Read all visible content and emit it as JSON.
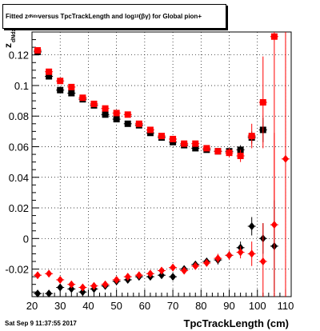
{
  "title": {
    "pre": "Fitted  z",
    "sub": "dNdx",
    "mid": " versus TpcTrackLength and log",
    "sub2": "10",
    "post": "(βγ) for Global pion+"
  },
  "footer": "Sat Sep  9 11:37:55 2017",
  "xlabel": "TpcTrackLength (cm)",
  "ylabel_main": "z",
  "ylabel_sub": "dNdx",
  "chart_data": {
    "type": "scatter",
    "title": "Fitted z_dNdx versus TpcTrackLength and log10(βγ) for Global pion+",
    "xlabel": "TpcTrackLength (cm)",
    "ylabel": "z_dNdx",
    "xlim": [
      20,
      112
    ],
    "ylim": [
      -0.038,
      0.135
    ],
    "xticks": [
      20,
      30,
      40,
      50,
      60,
      70,
      80,
      90,
      100,
      110
    ],
    "xtick_labels": [
      "20",
      "30",
      "40",
      "50",
      "60",
      "70",
      "80",
      "90",
      "100",
      "110"
    ],
    "yticks": [
      -0.02,
      0,
      0.02,
      0.04,
      0.06,
      0.08,
      0.1,
      0.12
    ],
    "ytick_labels": [
      "-0.02",
      "0",
      "0.02",
      "0.04",
      "0.06",
      "0.08",
      "0.1",
      "0.12"
    ],
    "grid": true,
    "series": [
      {
        "marker": "square",
        "color": "#000000",
        "points": [
          {
            "x": 22,
            "y": 0.122,
            "ey": 0.001
          },
          {
            "x": 26,
            "y": 0.106,
            "ey": 0.001
          },
          {
            "x": 30,
            "y": 0.097,
            "ey": 0.001
          },
          {
            "x": 34,
            "y": 0.095,
            "ey": 0.001
          },
          {
            "x": 38,
            "y": 0.091,
            "ey": 0.001
          },
          {
            "x": 42,
            "y": 0.087,
            "ey": 0.001
          },
          {
            "x": 46,
            "y": 0.081,
            "ey": 0.001
          },
          {
            "x": 50,
            "y": 0.078,
            "ey": 0.001
          },
          {
            "x": 54,
            "y": 0.075,
            "ey": 0.001
          },
          {
            "x": 58,
            "y": 0.074,
            "ey": 0.001
          },
          {
            "x": 62,
            "y": 0.069,
            "ey": 0.001
          },
          {
            "x": 66,
            "y": 0.066,
            "ey": 0.001
          },
          {
            "x": 70,
            "y": 0.063,
            "ey": 0.001
          },
          {
            "x": 74,
            "y": 0.061,
            "ey": 0.001
          },
          {
            "x": 78,
            "y": 0.059,
            "ey": 0.001
          },
          {
            "x": 82,
            "y": 0.058,
            "ey": 0.001
          },
          {
            "x": 86,
            "y": 0.057,
            "ey": 0.0015
          },
          {
            "x": 90,
            "y": 0.057,
            "ey": 0.002
          },
          {
            "x": 94,
            "y": 0.058,
            "ey": 0.003
          },
          {
            "x": 98,
            "y": 0.066,
            "ey": 0.004
          },
          {
            "x": 102,
            "y": 0.071,
            "ey": 0.008
          }
        ]
      },
      {
        "marker": "square",
        "color": "#ff0000",
        "points": [
          {
            "x": 22,
            "y": 0.123,
            "ey": 0.001
          },
          {
            "x": 26,
            "y": 0.109,
            "ey": 0.001
          },
          {
            "x": 30,
            "y": 0.103,
            "ey": 0.001
          },
          {
            "x": 34,
            "y": 0.099,
            "ey": 0.001
          },
          {
            "x": 38,
            "y": 0.092,
            "ey": 0.001
          },
          {
            "x": 42,
            "y": 0.088,
            "ey": 0.001
          },
          {
            "x": 46,
            "y": 0.085,
            "ey": 0.001
          },
          {
            "x": 50,
            "y": 0.082,
            "ey": 0.001
          },
          {
            "x": 54,
            "y": 0.081,
            "ey": 0.001
          },
          {
            "x": 58,
            "y": 0.075,
            "ey": 0.001
          },
          {
            "x": 62,
            "y": 0.071,
            "ey": 0.001
          },
          {
            "x": 66,
            "y": 0.067,
            "ey": 0.001
          },
          {
            "x": 70,
            "y": 0.065,
            "ey": 0.001
          },
          {
            "x": 74,
            "y": 0.062,
            "ey": 0.001
          },
          {
            "x": 78,
            "y": 0.062,
            "ey": 0.001
          },
          {
            "x": 82,
            "y": 0.059,
            "ey": 0.001
          },
          {
            "x": 86,
            "y": 0.057,
            "ey": 0.002
          },
          {
            "x": 90,
            "y": 0.056,
            "ey": 0.003
          },
          {
            "x": 94,
            "y": 0.054,
            "ey": 0.004
          },
          {
            "x": 98,
            "y": 0.067,
            "ey": 0.008
          },
          {
            "x": 102,
            "y": 0.089,
            "ey": 0.03
          },
          {
            "x": 106,
            "y": 0.132,
            "ey": 0.14
          }
        ]
      },
      {
        "marker": "diamond",
        "color": "#000000",
        "points": [
          {
            "x": 22,
            "y": -0.036,
            "ey": 0.002
          },
          {
            "x": 26,
            "y": -0.036,
            "ey": 0.002
          },
          {
            "x": 30,
            "y": -0.032,
            "ey": 0.002
          },
          {
            "x": 34,
            "y": -0.033,
            "ey": 0.002
          },
          {
            "x": 38,
            "y": -0.035,
            "ey": 0.002
          },
          {
            "x": 42,
            "y": -0.033,
            "ey": 0.002
          },
          {
            "x": 46,
            "y": -0.031,
            "ey": 0.002
          },
          {
            "x": 50,
            "y": -0.028,
            "ey": 0.002
          },
          {
            "x": 54,
            "y": -0.027,
            "ey": 0.002
          },
          {
            "x": 58,
            "y": -0.025,
            "ey": 0.002
          },
          {
            "x": 62,
            "y": -0.025,
            "ey": 0.002
          },
          {
            "x": 66,
            "y": -0.024,
            "ey": 0.002
          },
          {
            "x": 70,
            "y": -0.025,
            "ey": 0.002
          },
          {
            "x": 74,
            "y": -0.02,
            "ey": 0.002
          },
          {
            "x": 78,
            "y": -0.017,
            "ey": 0.002
          },
          {
            "x": 82,
            "y": -0.015,
            "ey": 0.002
          },
          {
            "x": 86,
            "y": -0.014,
            "ey": 0.003
          },
          {
            "x": 90,
            "y": -0.011,
            "ey": 0.003
          },
          {
            "x": 94,
            "y": -0.006,
            "ey": 0.004
          },
          {
            "x": 98,
            "y": 0.008,
            "ey": 0.006
          },
          {
            "x": 102,
            "y": 0.0,
            "ey": 0.01
          },
          {
            "x": 106,
            "y": -0.005,
            "ey": 0.03
          }
        ]
      },
      {
        "marker": "diamond",
        "color": "#ff0000",
        "points": [
          {
            "x": 22,
            "y": -0.024,
            "ey": 0.002
          },
          {
            "x": 26,
            "y": -0.023,
            "ey": 0.002
          },
          {
            "x": 30,
            "y": -0.027,
            "ey": 0.002
          },
          {
            "x": 34,
            "y": -0.03,
            "ey": 0.002
          },
          {
            "x": 38,
            "y": -0.032,
            "ey": 0.002
          },
          {
            "x": 42,
            "y": -0.031,
            "ey": 0.002
          },
          {
            "x": 46,
            "y": -0.03,
            "ey": 0.002
          },
          {
            "x": 50,
            "y": -0.027,
            "ey": 0.002
          },
          {
            "x": 54,
            "y": -0.025,
            "ey": 0.002
          },
          {
            "x": 58,
            "y": -0.024,
            "ey": 0.002
          },
          {
            "x": 62,
            "y": -0.023,
            "ey": 0.002
          },
          {
            "x": 66,
            "y": -0.021,
            "ey": 0.002
          },
          {
            "x": 70,
            "y": -0.019,
            "ey": 0.002
          },
          {
            "x": 74,
            "y": -0.021,
            "ey": 0.002
          },
          {
            "x": 78,
            "y": -0.018,
            "ey": 0.002
          },
          {
            "x": 82,
            "y": -0.016,
            "ey": 0.002
          },
          {
            "x": 86,
            "y": -0.013,
            "ey": 0.003
          },
          {
            "x": 90,
            "y": -0.011,
            "ey": 0.003
          },
          {
            "x": 94,
            "y": -0.009,
            "ey": 0.004
          },
          {
            "x": 98,
            "y": -0.01,
            "ey": 0.008
          },
          {
            "x": 102,
            "y": -0.015,
            "ey": 0.025
          },
          {
            "x": 106,
            "y": 0.009,
            "ey": 0.06
          },
          {
            "x": 110,
            "y": 0.052,
            "ey": 0.15
          }
        ]
      }
    ]
  }
}
